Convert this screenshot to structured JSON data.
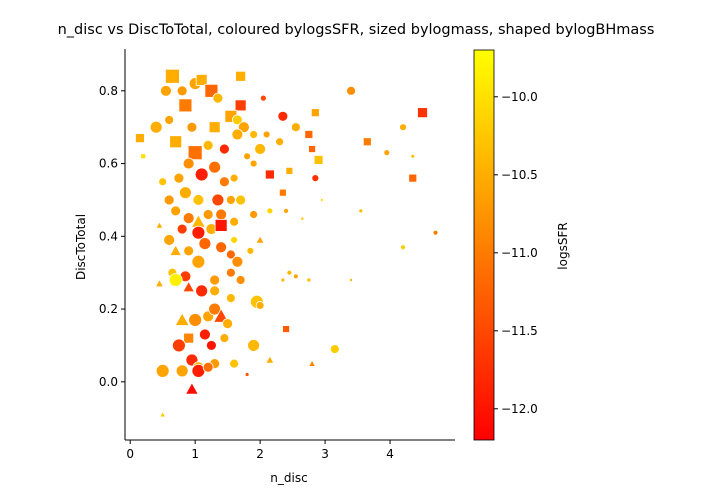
{
  "chart_data": {
    "type": "scatter",
    "title": "n_disc vs DiscToTotal, coloured bylogsSFR, sized bylogmass, shaped bylogBHmass",
    "xlabel": "n_disc",
    "ylabel": "DiscToTotal",
    "xlim": [
      -0.08,
      5.0
    ],
    "ylim": [
      -0.16,
      0.915
    ],
    "xticks": [
      0,
      1,
      2,
      3,
      4
    ],
    "yticks": [
      0.0,
      0.2,
      0.4,
      0.6,
      0.8
    ],
    "grid": false,
    "colorbar": {
      "label": "logsSFR",
      "range": [
        -12.2,
        -9.7
      ],
      "ticks": [
        -12.0,
        -11.5,
        -11.0,
        -10.5,
        -10.0
      ],
      "tick_labels": [
        "−12.0",
        "−11.5",
        "−11.0",
        "−10.5",
        "−10.0"
      ],
      "colormap": [
        "#ff0000",
        "#ff8000",
        "#ffff00"
      ]
    },
    "points": [
      [
        0.65,
        0.84,
        -10.5,
        14,
        "s"
      ],
      [
        0.8,
        0.8,
        -10.7,
        10,
        "o"
      ],
      [
        1.0,
        0.82,
        -10.6,
        12,
        "o"
      ],
      [
        1.1,
        0.83,
        -10.5,
        11,
        "s"
      ],
      [
        1.25,
        0.8,
        -11.2,
        13,
        "s"
      ],
      [
        1.7,
        0.84,
        -10.5,
        10,
        "s"
      ],
      [
        0.55,
        0.8,
        -10.6,
        11,
        "o"
      ],
      [
        0.85,
        0.76,
        -11.0,
        13,
        "s"
      ],
      [
        1.35,
        0.78,
        -10.4,
        10,
        "o"
      ],
      [
        1.7,
        0.76,
        -11.6,
        11,
        "s"
      ],
      [
        2.05,
        0.78,
        -11.5,
        6,
        "o"
      ],
      [
        2.35,
        0.73,
        -11.8,
        10,
        "o"
      ],
      [
        2.85,
        0.74,
        -10.6,
        8,
        "s"
      ],
      [
        3.4,
        0.8,
        -10.8,
        9,
        "o"
      ],
      [
        4.5,
        0.74,
        -11.7,
        10,
        "s"
      ],
      [
        0.4,
        0.7,
        -10.5,
        12,
        "o"
      ],
      [
        0.6,
        0.72,
        -10.6,
        9,
        "o"
      ],
      [
        0.95,
        0.7,
        -10.7,
        10,
        "o"
      ],
      [
        1.3,
        0.7,
        -10.5,
        11,
        "s"
      ],
      [
        1.55,
        0.73,
        -10.6,
        12,
        "s"
      ],
      [
        1.65,
        0.72,
        -10.2,
        10,
        "o"
      ],
      [
        1.75,
        0.7,
        -10.6,
        11,
        "o"
      ],
      [
        2.1,
        0.68,
        -10.6,
        7,
        "o"
      ],
      [
        2.55,
        0.7,
        -10.5,
        9,
        "o"
      ],
      [
        2.75,
        0.68,
        -11.2,
        8,
        "s"
      ],
      [
        0.15,
        0.67,
        -10.5,
        9,
        "s"
      ],
      [
        0.7,
        0.66,
        -10.5,
        12,
        "s"
      ],
      [
        1.0,
        0.63,
        -11.1,
        14,
        "s"
      ],
      [
        1.2,
        0.65,
        -10.4,
        10,
        "o"
      ],
      [
        1.45,
        0.64,
        -11.8,
        10,
        "o"
      ],
      [
        1.65,
        0.68,
        -10.5,
        11,
        "o"
      ],
      [
        1.9,
        0.68,
        -10.4,
        8,
        "o"
      ],
      [
        1.8,
        0.62,
        -10.6,
        7,
        "o"
      ],
      [
        2.0,
        0.64,
        -10.4,
        11,
        "o"
      ],
      [
        2.3,
        0.66,
        -10.5,
        8,
        "o"
      ],
      [
        2.8,
        0.64,
        -11.2,
        7,
        "s"
      ],
      [
        2.9,
        0.61,
        -10.3,
        9,
        "s"
      ],
      [
        3.65,
        0.66,
        -11.0,
        8,
        "s"
      ],
      [
        3.95,
        0.63,
        -10.6,
        6,
        "o"
      ],
      [
        4.2,
        0.7,
        -10.5,
        7,
        "o"
      ],
      [
        4.35,
        0.62,
        -10.3,
        4,
        "o"
      ],
      [
        0.2,
        0.62,
        -10.0,
        5,
        "s"
      ],
      [
        0.5,
        0.55,
        -10.3,
        8,
        "o"
      ],
      [
        0.75,
        0.56,
        -10.6,
        10,
        "o"
      ],
      [
        0.9,
        0.6,
        -10.8,
        11,
        "o"
      ],
      [
        1.1,
        0.57,
        -11.9,
        13,
        "o"
      ],
      [
        1.3,
        0.59,
        -11.1,
        12,
        "o"
      ],
      [
        1.45,
        0.55,
        -11.0,
        10,
        "o"
      ],
      [
        1.6,
        0.56,
        -10.5,
        8,
        "o"
      ],
      [
        1.9,
        0.6,
        -10.6,
        7,
        "o"
      ],
      [
        2.15,
        0.57,
        -11.8,
        9,
        "s"
      ],
      [
        2.45,
        0.58,
        -10.5,
        7,
        "s"
      ],
      [
        2.85,
        0.56,
        -11.7,
        7,
        "o"
      ],
      [
        4.35,
        0.56,
        -11.2,
        8,
        "s"
      ],
      [
        0.6,
        0.5,
        -10.7,
        10,
        "o"
      ],
      [
        0.85,
        0.52,
        -10.5,
        12,
        "o"
      ],
      [
        1.05,
        0.5,
        -10.3,
        11,
        "o"
      ],
      [
        1.35,
        0.5,
        -11.5,
        12,
        "o"
      ],
      [
        1.55,
        0.5,
        -10.6,
        9,
        "o"
      ],
      [
        1.7,
        0.5,
        -10.3,
        10,
        "o"
      ],
      [
        2.35,
        0.52,
        -11.0,
        7,
        "s"
      ],
      [
        0.7,
        0.47,
        -10.6,
        10,
        "o"
      ],
      [
        0.9,
        0.45,
        -11.0,
        11,
        "o"
      ],
      [
        1.05,
        0.44,
        -10.4,
        12,
        "^"
      ],
      [
        1.2,
        0.46,
        -10.7,
        10,
        "o"
      ],
      [
        1.4,
        0.46,
        -11.0,
        11,
        "o"
      ],
      [
        1.6,
        0.44,
        -10.5,
        9,
        "o"
      ],
      [
        1.9,
        0.46,
        -10.7,
        8,
        "o"
      ],
      [
        2.15,
        0.47,
        -10.1,
        6,
        "o"
      ],
      [
        2.4,
        0.47,
        -10.6,
        5,
        "o"
      ],
      [
        2.65,
        0.45,
        -10.3,
        4,
        "^"
      ],
      [
        2.95,
        0.5,
        -10.1,
        3,
        "o"
      ],
      [
        3.55,
        0.47,
        -10.4,
        4,
        "o"
      ],
      [
        0.45,
        0.43,
        -10.5,
        6,
        "^"
      ],
      [
        0.8,
        0.42,
        -11.6,
        10,
        "o"
      ],
      [
        1.05,
        0.41,
        -11.9,
        13,
        "o"
      ],
      [
        1.25,
        0.42,
        -10.5,
        11,
        "o"
      ],
      [
        1.4,
        0.43,
        -12.0,
        12,
        "s"
      ],
      [
        1.6,
        0.39,
        -10.1,
        7,
        "o"
      ],
      [
        2.0,
        0.39,
        -10.6,
        7,
        "^"
      ],
      [
        4.2,
        0.37,
        -10.2,
        5,
        "o"
      ],
      [
        4.7,
        0.41,
        -11.0,
        5,
        "o"
      ],
      [
        0.6,
        0.39,
        -10.6,
        11,
        "o"
      ],
      [
        0.7,
        0.36,
        -10.5,
        10,
        "^"
      ],
      [
        0.9,
        0.36,
        -10.6,
        10,
        "o"
      ],
      [
        1.15,
        0.38,
        -11.2,
        12,
        "o"
      ],
      [
        1.4,
        0.37,
        -11.2,
        11,
        "o"
      ],
      [
        1.55,
        0.35,
        -11.2,
        9,
        "o"
      ],
      [
        1.65,
        0.33,
        -10.8,
        11,
        "o"
      ],
      [
        1.85,
        0.36,
        -10.4,
        7,
        "o"
      ],
      [
        0.65,
        0.3,
        -10.3,
        9,
        "o"
      ],
      [
        0.85,
        0.29,
        -11.6,
        11,
        "o"
      ],
      [
        1.05,
        0.33,
        -10.6,
        13,
        "o"
      ],
      [
        1.3,
        0.28,
        -10.7,
        10,
        "o"
      ],
      [
        1.55,
        0.3,
        -11.0,
        9,
        "o"
      ],
      [
        1.7,
        0.28,
        -10.8,
        9,
        "o"
      ],
      [
        2.45,
        0.3,
        -10.4,
        5,
        "o"
      ],
      [
        2.55,
        0.29,
        -10.6,
        5,
        "o"
      ],
      [
        2.35,
        0.28,
        -10.4,
        4,
        "o"
      ],
      [
        2.75,
        0.28,
        -10.4,
        4,
        "o"
      ],
      [
        3.4,
        0.28,
        -10.5,
        3,
        "o"
      ],
      [
        0.45,
        0.27,
        -10.5,
        7,
        "^"
      ],
      [
        0.7,
        0.28,
        -9.85,
        13,
        "o"
      ],
      [
        0.9,
        0.26,
        -11.5,
        10,
        "^"
      ],
      [
        1.1,
        0.25,
        -11.8,
        12,
        "o"
      ],
      [
        1.3,
        0.25,
        -10.5,
        10,
        "o"
      ],
      [
        1.55,
        0.23,
        -10.4,
        9,
        "o"
      ],
      [
        1.95,
        0.22,
        -10.3,
        13,
        "o"
      ],
      [
        2.0,
        0.21,
        -10.5,
        8,
        "o"
      ],
      [
        0.8,
        0.17,
        -10.5,
        12,
        "^"
      ],
      [
        1.0,
        0.17,
        -10.8,
        13,
        "o"
      ],
      [
        1.2,
        0.18,
        -10.6,
        11,
        "o"
      ],
      [
        1.3,
        0.2,
        -11.0,
        12,
        "o"
      ],
      [
        1.4,
        0.18,
        -11.5,
        13,
        "^"
      ],
      [
        1.5,
        0.16,
        -10.5,
        10,
        "o"
      ],
      [
        0.9,
        0.12,
        -10.9,
        10,
        "s"
      ],
      [
        1.15,
        0.13,
        -11.9,
        11,
        "o"
      ],
      [
        1.25,
        0.1,
        -12.0,
        10,
        "o"
      ],
      [
        1.45,
        0.12,
        -10.5,
        9,
        "o"
      ],
      [
        1.9,
        0.1,
        -10.4,
        12,
        "o"
      ],
      [
        2.4,
        0.145,
        -11.3,
        7,
        "s"
      ],
      [
        3.15,
        0.09,
        -10.2,
        9,
        "o"
      ],
      [
        0.75,
        0.1,
        -11.6,
        13,
        "o"
      ],
      [
        0.95,
        0.06,
        -11.8,
        12,
        "o"
      ],
      [
        1.05,
        0.04,
        -10.4,
        11,
        "o"
      ],
      [
        1.3,
        0.05,
        -10.7,
        10,
        "o"
      ],
      [
        1.6,
        0.05,
        -10.3,
        9,
        "o"
      ],
      [
        2.15,
        0.06,
        -10.5,
        7,
        "^"
      ],
      [
        2.8,
        0.05,
        -10.9,
        6,
        "^"
      ],
      [
        0.5,
        0.03,
        -10.6,
        13,
        "o"
      ],
      [
        0.8,
        0.03,
        -10.6,
        12,
        "o"
      ],
      [
        1.05,
        0.03,
        -11.9,
        13,
        "o"
      ],
      [
        1.2,
        0.04,
        -11.1,
        10,
        "o"
      ],
      [
        1.8,
        0.02,
        -11.4,
        4,
        "o"
      ],
      [
        0.95,
        -0.02,
        -12.1,
        11,
        "^"
      ],
      [
        0.5,
        -0.09,
        -10.2,
        5,
        "^"
      ]
    ]
  }
}
